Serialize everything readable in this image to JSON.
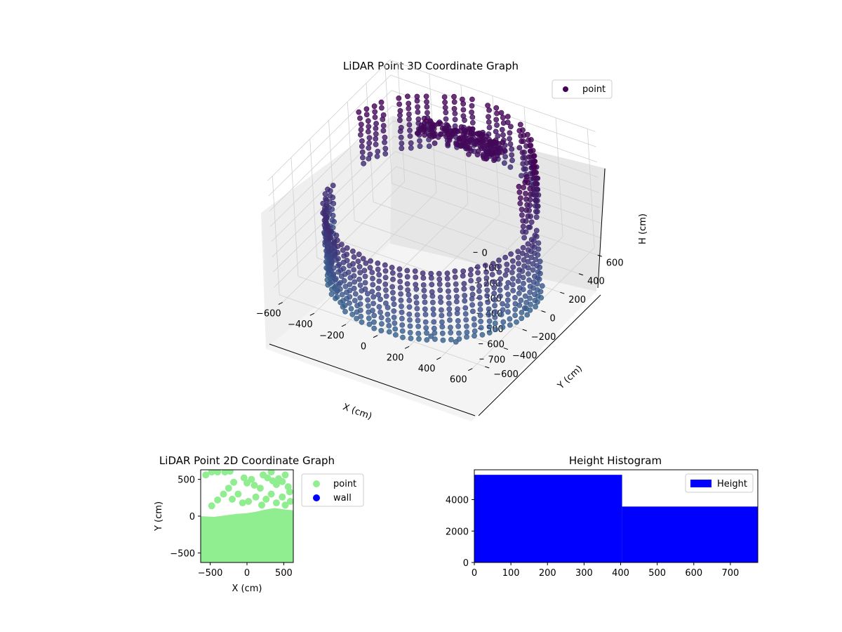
{
  "chart_data": [
    {
      "type": "scatter3d",
      "title": "LiDAR Point 3D Coordinate Graph",
      "xlabel": "X (cm)",
      "ylabel": "Y (cm)",
      "zlabel": "H (cm)",
      "xlim": [
        -650,
        650
      ],
      "ylim": [
        -650,
        650
      ],
      "zlim": [
        0,
        780
      ],
      "z_inverted": true,
      "x_ticks": [
        "−600",
        "−400",
        "−200",
        "0",
        "200",
        "400",
        "600"
      ],
      "y_ticks": [
        "−600",
        "−400",
        "−200",
        "0",
        "200",
        "400",
        "600"
      ],
      "z_ticks": [
        "0",
        "100",
        "200",
        "300",
        "400",
        "500",
        "600",
        "700"
      ],
      "grid": true,
      "legend": {
        "position": "top-right",
        "entries": [
          {
            "label": "point",
            "color": "#440154"
          }
        ]
      },
      "colormap": "viridis",
      "series": [
        {
          "name": "point",
          "structures": [
            {
              "kind": "wall-ring",
              "theta_deg": [
                190,
                370
              ],
              "radius": 600,
              "h_range": [
                340,
                780
              ],
              "n_columns": 44,
              "n_levels": 12
            },
            {
              "kind": "wall-ring",
              "theta_deg": [
                0,
                170
              ],
              "radius": 560,
              "h_range": [
                0,
                330
              ],
              "n_columns": 34,
              "n_levels": 10
            },
            {
              "kind": "ceiling-cluster",
              "center": [
                0,
                320
              ],
              "h_range": [
                40,
                120
              ],
              "n_points": 180
            }
          ],
          "outliers": [
            {
              "x": 300,
              "y": -580,
              "h": 720
            },
            {
              "x": -250,
              "y": 430,
              "h": 220
            },
            {
              "x": 620,
              "y": -120,
              "h": 700
            },
            {
              "x": 420,
              "y": -520,
              "h": 750
            }
          ]
        }
      ]
    },
    {
      "type": "scatter",
      "title": "LiDAR Point 2D Coordinate Graph",
      "xlabel": "X (cm)",
      "ylabel": "Y (cm)",
      "xlim": [
        -630,
        630
      ],
      "ylim": [
        -630,
        630
      ],
      "x_ticks": [
        -500,
        0,
        500
      ],
      "y_ticks": [
        -500,
        0,
        500
      ],
      "legend": {
        "position": "outside-right",
        "entries": [
          {
            "label": "point",
            "color": "#90ee90"
          },
          {
            "label": "wall",
            "color": "#0000ff"
          }
        ]
      },
      "series": [
        {
          "name": "point",
          "color": "#90ee90",
          "region_polygon": [
            [
              -630,
              -630
            ],
            [
              630,
              -630
            ],
            [
              630,
              80
            ],
            [
              520,
              90
            ],
            [
              380,
              110
            ],
            [
              250,
              90
            ],
            [
              120,
              60
            ],
            [
              0,
              40
            ],
            [
              -150,
              30
            ],
            [
              -300,
              10
            ],
            [
              -450,
              -10
            ],
            [
              -630,
              0
            ]
          ],
          "ridge_points": [
            [
              -480,
              140
            ],
            [
              -400,
              220
            ],
            [
              -320,
              300
            ],
            [
              -250,
              380
            ],
            [
              -180,
              460
            ],
            [
              -560,
              560
            ],
            [
              -480,
              600
            ],
            [
              -400,
              600
            ],
            [
              -300,
              600
            ],
            [
              -230,
              610
            ],
            [
              -40,
              520
            ],
            [
              0,
              450
            ],
            [
              60,
              500
            ],
            [
              100,
              420
            ],
            [
              180,
              380
            ],
            [
              220,
              560
            ],
            [
              280,
              520
            ],
            [
              330,
              600
            ],
            [
              350,
              480
            ],
            [
              400,
              430
            ],
            [
              430,
              510
            ],
            [
              480,
              470
            ],
            [
              520,
              560
            ],
            [
              560,
              400
            ],
            [
              580,
              330
            ],
            [
              -200,
              230
            ],
            [
              -120,
              300
            ],
            [
              -60,
              180
            ],
            [
              20,
              200
            ],
            [
              120,
              260
            ],
            [
              200,
              150
            ],
            [
              260,
              230
            ],
            [
              330,
              300
            ],
            [
              400,
              180
            ],
            [
              480,
              260
            ],
            [
              520,
              150
            ],
            [
              590,
              200
            ]
          ]
        },
        {
          "name": "wall",
          "color": "#0000ff",
          "points": []
        }
      ]
    },
    {
      "type": "bar",
      "title": "Height Histogram",
      "legend": {
        "position": "top-right",
        "entries": [
          {
            "label": "Height",
            "color": "#0000ff"
          }
        ]
      },
      "xlim": [
        0,
        775
      ],
      "ylim": [
        0,
        5900
      ],
      "x_ticks": [
        0,
        100,
        200,
        300,
        400,
        500,
        600,
        700
      ],
      "y_ticks": [
        0,
        2000,
        4000
      ],
      "bins": [
        {
          "x0": 0,
          "x1": 404,
          "count": 5580
        },
        {
          "x0": 404,
          "x1": 775,
          "count": 3560
        }
      ]
    }
  ]
}
